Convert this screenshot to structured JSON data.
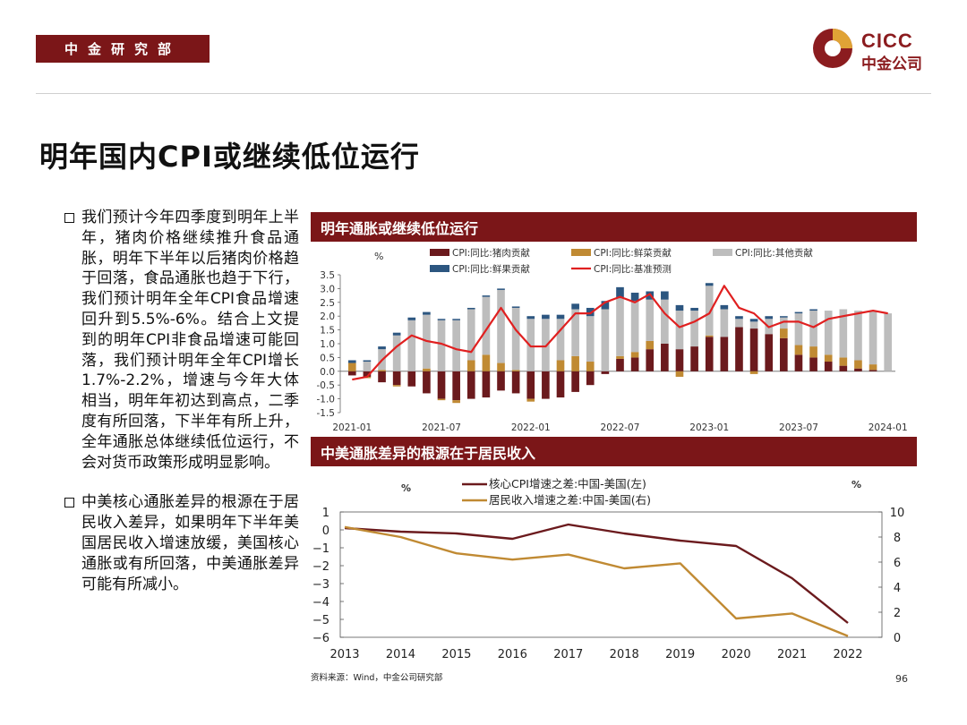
{
  "header": {
    "department": "中金研究部",
    "logo_en": "CICC",
    "logo_cn": "中金公司"
  },
  "page": {
    "title": "明年国内CPI或继续低位运行",
    "source": "资料来源：Wind，中金公司研究部",
    "page_number": "96"
  },
  "bullets": [
    "我们预计今年四季度到明年上半年，猪肉价格继续推升食品通胀，明年下半年以后猪肉价格趋于回落，食品通胀也趋于下行，我们预计明年全年CPI食品增速回升到5.5%-6%。结合上文提到的明年CPI非食品增速可能回落，我们预计明年全年CPI增长1.7%-2.2%，增速与今年大体相当，明年年初达到高点，二季度有所回落，下半年有所上升，全年通胀总体继续低位运行，不会对货币政策形成明显影响。",
    "中美核心通胀差异的根源在于居民收入差异，如果明年下半年美国居民收入增速放缓，美国核心通胀或有所回落，中美通胀差异可能有所减小。"
  ],
  "colors": {
    "brand": "#7b1618",
    "pork": "#6b1a1d",
    "veg": "#c08a33",
    "other": "#bdbdbd",
    "fruit": "#2c5680",
    "forecast": "#e02020",
    "core_gap": "#6b1a1d",
    "income_gap": "#c08a33"
  },
  "chart_data": [
    {
      "type": "bar",
      "title": "明年通胀或继续低位运行",
      "ylabel": "%",
      "ylim": [
        -1.5,
        3.5
      ],
      "yticks": [
        "3.5",
        "3.0",
        "2.5",
        "2.0",
        "1.5",
        "1.0",
        "0.5",
        "0.0",
        "-0.5",
        "-1.0",
        "-1.5"
      ],
      "stacked": true,
      "x_tick_labels": [
        "2021-01",
        "2021-07",
        "2022-01",
        "2022-07",
        "2023-01",
        "2023-07",
        "2024-01"
      ],
      "categories": [
        "2021-01",
        "2021-02",
        "2021-03",
        "2021-04",
        "2021-05",
        "2021-06",
        "2021-07",
        "2021-08",
        "2021-09",
        "2021-10",
        "2021-11",
        "2021-12",
        "2022-01",
        "2022-02",
        "2022-03",
        "2022-04",
        "2022-05",
        "2022-06",
        "2022-07",
        "2022-08",
        "2022-09",
        "2022-10",
        "2022-11",
        "2022-12",
        "2023-01",
        "2023-02",
        "2023-03",
        "2023-04",
        "2023-05",
        "2023-06",
        "2023-07",
        "2023-08",
        "2023-09",
        "2023-10",
        "2023-11",
        "2023-12",
        "2024-01"
      ],
      "series": [
        {
          "name": "CPI:同比:猪肉贡献",
          "values": [
            -0.15,
            -0.2,
            -0.4,
            -0.5,
            -0.55,
            -0.8,
            -1.0,
            -1.05,
            -1.0,
            -0.95,
            -0.7,
            -0.8,
            -1.0,
            -1.0,
            -0.95,
            -0.75,
            -0.5,
            -0.1,
            0.45,
            0.5,
            0.8,
            1.0,
            0.8,
            0.9,
            1.25,
            1.25,
            1.6,
            1.55,
            1.35,
            1.2,
            0.6,
            0.5,
            0.35,
            0.2,
            0.1,
            0.05,
            0.0
          ]
        },
        {
          "name": "CPI:同比:鲜菜贡献",
          "values": [
            0.3,
            -0.05,
            0.05,
            -0.05,
            0.0,
            0.1,
            -0.05,
            -0.1,
            0.4,
            0.6,
            0.3,
            0.05,
            -0.1,
            0.0,
            0.4,
            0.55,
            0.35,
            0.0,
            0.1,
            0.2,
            0.3,
            0.0,
            -0.2,
            0.0,
            0.05,
            0.0,
            0.0,
            -0.1,
            0.0,
            0.35,
            0.35,
            0.4,
            0.25,
            0.3,
            0.3,
            0.2,
            0.0
          ]
        },
        {
          "name": "CPI:同比:其他贡献",
          "values": [
            0.0,
            0.35,
            0.75,
            1.3,
            1.85,
            1.95,
            1.85,
            1.85,
            1.85,
            2.1,
            2.65,
            2.25,
            1.9,
            1.9,
            1.5,
            1.7,
            1.65,
            2.25,
            2.1,
            1.85,
            1.5,
            1.6,
            1.4,
            1.3,
            1.8,
            1.0,
            0.3,
            0.25,
            0.55,
            0.4,
            1.15,
            1.3,
            1.6,
            1.75,
            1.8,
            1.95,
            2.1
          ]
        },
        {
          "name": "CPI:同比:鲜果贡献",
          "values": [
            0.1,
            0.05,
            0.1,
            0.1,
            0.1,
            0.1,
            0.05,
            0.05,
            0.05,
            0.05,
            0.05,
            0.05,
            0.1,
            0.15,
            0.15,
            0.2,
            0.3,
            0.3,
            0.4,
            0.3,
            0.3,
            0.3,
            0.2,
            0.1,
            0.1,
            0.15,
            0.1,
            0.1,
            0.1,
            0.05,
            0.05,
            0.05,
            0.0,
            0.0,
            0.0,
            0.0,
            0.0
          ]
        }
      ],
      "line_series": {
        "name": "CPI:同比:基准预测",
        "values": [
          -0.3,
          -0.2,
          0.4,
          0.9,
          1.3,
          1.1,
          1.0,
          0.8,
          0.7,
          1.5,
          2.3,
          1.5,
          0.9,
          0.9,
          1.5,
          2.1,
          2.1,
          2.5,
          2.7,
          2.5,
          2.8,
          2.1,
          1.6,
          1.8,
          2.1,
          3.1,
          2.3,
          2.1,
          1.6,
          1.8,
          1.8,
          1.6,
          1.9,
          2.0,
          2.1,
          2.2,
          2.1
        ]
      }
    },
    {
      "type": "line",
      "title": "中美通胀差异的根源在于居民收入",
      "left_unit": "%",
      "right_unit": "%",
      "ylim_left": [
        -6,
        1
      ],
      "ylim_right": [
        0,
        10
      ],
      "yticks_left": [
        "1",
        "0",
        "−1",
        "−2",
        "−3",
        "−4",
        "−5",
        "−6"
      ],
      "yticks_right": [
        "10",
        "8",
        "6",
        "4",
        "2",
        "0"
      ],
      "categories": [
        "2013",
        "2014",
        "2015",
        "2016",
        "2017",
        "2018",
        "2019",
        "2020",
        "2021",
        "2022"
      ],
      "series": [
        {
          "name": "核心CPI增速之差:中国-美国(左)",
          "axis": "left",
          "values": [
            0.1,
            -0.1,
            -0.2,
            -0.5,
            0.3,
            -0.2,
            -0.6,
            -0.9,
            -2.7,
            -5.2
          ]
        },
        {
          "name": "居民收入增速之差:中国-美国(右)",
          "axis": "right",
          "values": [
            8.8,
            8.0,
            6.7,
            6.2,
            6.6,
            5.5,
            5.9,
            1.5,
            1.9,
            0.1
          ]
        }
      ]
    }
  ]
}
